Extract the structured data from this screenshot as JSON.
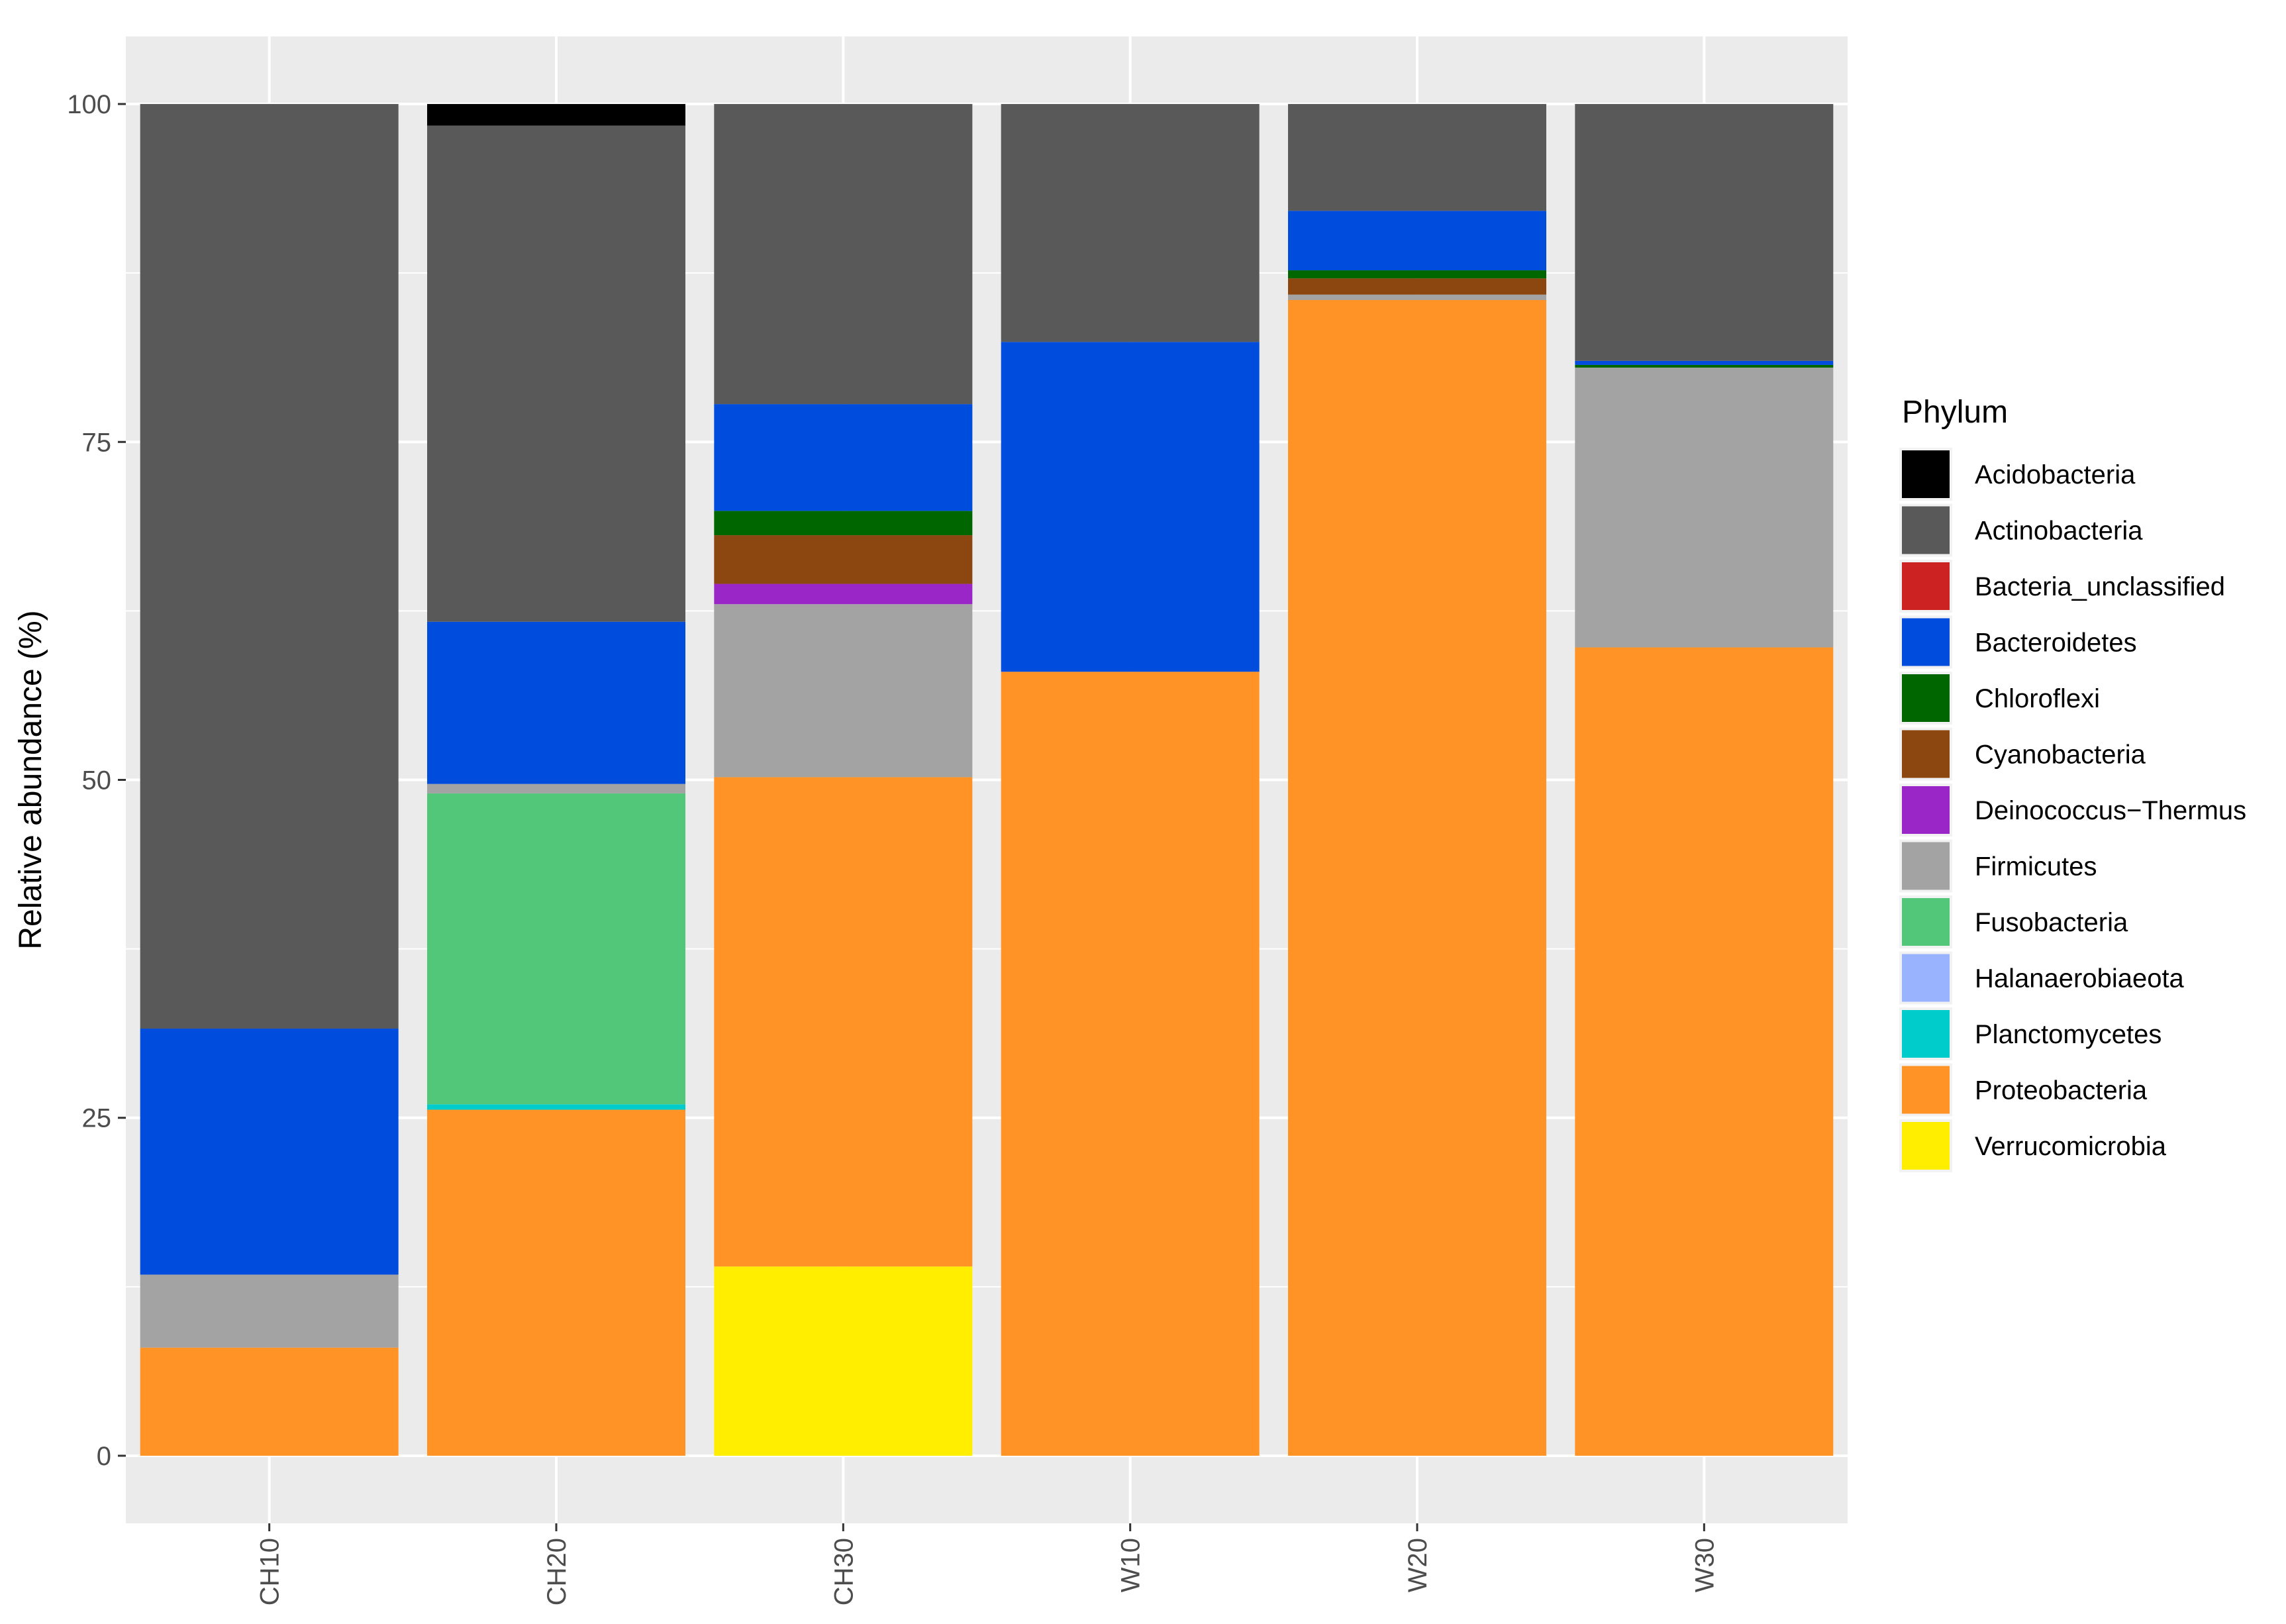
{
  "chart_data": {
    "type": "bar",
    "stacked": true,
    "title": "",
    "xlabel": "",
    "ylabel": "Relative abundance (%)",
    "ylim": [
      -5,
      105
    ],
    "y_ticks": [
      0,
      25,
      50,
      75,
      100
    ],
    "categories": [
      "CH10",
      "CH20",
      "CH30",
      "W10",
      "W20",
      "W30"
    ],
    "legend": {
      "title": "Phylum",
      "position": "right"
    },
    "background": "#ebebeb",
    "grid": true,
    "series": [
      {
        "name": "Verrucomicrobia",
        "color": "#ffee00",
        "values": [
          0,
          0,
          14,
          0,
          0,
          0
        ]
      },
      {
        "name": "Proteobacteria",
        "color": "#ff9326",
        "values": [
          8,
          25.6,
          36.2,
          58,
          85.5,
          59.8
        ]
      },
      {
        "name": "Planctomycetes",
        "color": "#00cccc",
        "values": [
          0,
          0.4,
          0,
          0,
          0,
          0
        ]
      },
      {
        "name": "Halanaerobiaeota",
        "color": "#99b3ff",
        "values": [
          0,
          0,
          0,
          0,
          0,
          0
        ]
      },
      {
        "name": "Fusobacteria",
        "color": "#53c779",
        "values": [
          0,
          23,
          0,
          0,
          0,
          0
        ]
      },
      {
        "name": "Firmicutes",
        "color": "#a3a3a3",
        "values": [
          5.4,
          0.7,
          12.8,
          0,
          0.4,
          20.7
        ]
      },
      {
        "name": "Deinococcus−Thermus",
        "color": "#9b26c7",
        "values": [
          0,
          0,
          1.5,
          0,
          0,
          0
        ]
      },
      {
        "name": "Cyanobacteria",
        "color": "#8c460f",
        "values": [
          0,
          0,
          3.6,
          0,
          1.2,
          0
        ]
      },
      {
        "name": "Chloroflexi",
        "color": "#006600",
        "values": [
          0,
          0,
          1.8,
          0,
          0.6,
          0.2
        ]
      },
      {
        "name": "Bacteroidetes",
        "color": "#004cdd",
        "values": [
          18.2,
          12,
          7.9,
          24.4,
          4.4,
          0.3
        ]
      },
      {
        "name": "Bacteria_unclassified",
        "color": "#cc2222",
        "values": [
          0,
          0,
          0,
          0,
          0,
          0
        ]
      },
      {
        "name": "Actinobacteria",
        "color": "#595959",
        "values": [
          68.4,
          36.7,
          22.2,
          17.6,
          7.9,
          19
        ]
      },
      {
        "name": "Acidobacteria",
        "color": "#000000",
        "values": [
          0,
          1.6,
          0,
          0,
          0,
          0
        ]
      }
    ],
    "legend_order": [
      "Acidobacteria",
      "Actinobacteria",
      "Bacteria_unclassified",
      "Bacteroidetes",
      "Chloroflexi",
      "Cyanobacteria",
      "Deinococcus−Thermus",
      "Firmicutes",
      "Fusobacteria",
      "Halanaerobiaeota",
      "Planctomycetes",
      "Proteobacteria",
      "Verrucomicrobia"
    ]
  }
}
